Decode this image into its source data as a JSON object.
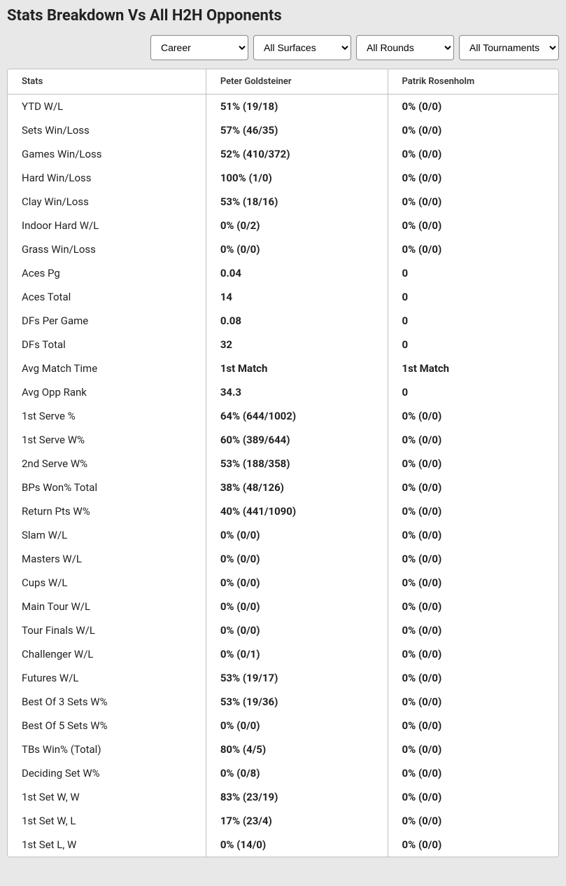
{
  "title": "Stats Breakdown Vs All H2H Opponents",
  "filters": {
    "timeframe": "Career",
    "surface": "All Surfaces",
    "round": "All Rounds",
    "tournament": "All Tournaments"
  },
  "table": {
    "columns": [
      "Stats",
      "Peter Goldsteiner",
      "Patrik Rosenholm"
    ],
    "rows": [
      [
        "YTD W/L",
        "51% (19/18)",
        "0% (0/0)"
      ],
      [
        "Sets Win/Loss",
        "57% (46/35)",
        "0% (0/0)"
      ],
      [
        "Games Win/Loss",
        "52% (410/372)",
        "0% (0/0)"
      ],
      [
        "Hard Win/Loss",
        "100% (1/0)",
        "0% (0/0)"
      ],
      [
        "Clay Win/Loss",
        "53% (18/16)",
        "0% (0/0)"
      ],
      [
        "Indoor Hard W/L",
        "0% (0/2)",
        "0% (0/0)"
      ],
      [
        "Grass Win/Loss",
        "0% (0/0)",
        "0% (0/0)"
      ],
      [
        "Aces Pg",
        "0.04",
        "0"
      ],
      [
        "Aces Total",
        "14",
        "0"
      ],
      [
        "DFs Per Game",
        "0.08",
        "0"
      ],
      [
        "DFs Total",
        "32",
        "0"
      ],
      [
        "Avg Match Time",
        "1st Match",
        "1st Match"
      ],
      [
        "Avg Opp Rank",
        "34.3",
        "0"
      ],
      [
        "1st Serve %",
        "64% (644/1002)",
        "0% (0/0)"
      ],
      [
        "1st Serve W%",
        "60% (389/644)",
        "0% (0/0)"
      ],
      [
        "2nd Serve W%",
        "53% (188/358)",
        "0% (0/0)"
      ],
      [
        "BPs Won% Total",
        "38% (48/126)",
        "0% (0/0)"
      ],
      [
        "Return Pts W%",
        "40% (441/1090)",
        "0% (0/0)"
      ],
      [
        "Slam W/L",
        "0% (0/0)",
        "0% (0/0)"
      ],
      [
        "Masters W/L",
        "0% (0/0)",
        "0% (0/0)"
      ],
      [
        "Cups W/L",
        "0% (0/0)",
        "0% (0/0)"
      ],
      [
        "Main Tour W/L",
        "0% (0/0)",
        "0% (0/0)"
      ],
      [
        "Tour Finals W/L",
        "0% (0/0)",
        "0% (0/0)"
      ],
      [
        "Challenger W/L",
        "0% (0/1)",
        "0% (0/0)"
      ],
      [
        "Futures W/L",
        "53% (19/17)",
        "0% (0/0)"
      ],
      [
        "Best Of 3 Sets W%",
        "53% (19/36)",
        "0% (0/0)"
      ],
      [
        "Best Of 5 Sets W%",
        "0% (0/0)",
        "0% (0/0)"
      ],
      [
        "TBs Win% (Total)",
        "80% (4/5)",
        "0% (0/0)"
      ],
      [
        "Deciding Set W%",
        "0% (0/8)",
        "0% (0/0)"
      ],
      [
        "1st Set W, W",
        "83% (23/19)",
        "0% (0/0)"
      ],
      [
        "1st Set W, L",
        "17% (23/4)",
        "0% (0/0)"
      ],
      [
        "1st Set L, W",
        "0% (14/0)",
        "0% (0/0)"
      ]
    ]
  }
}
